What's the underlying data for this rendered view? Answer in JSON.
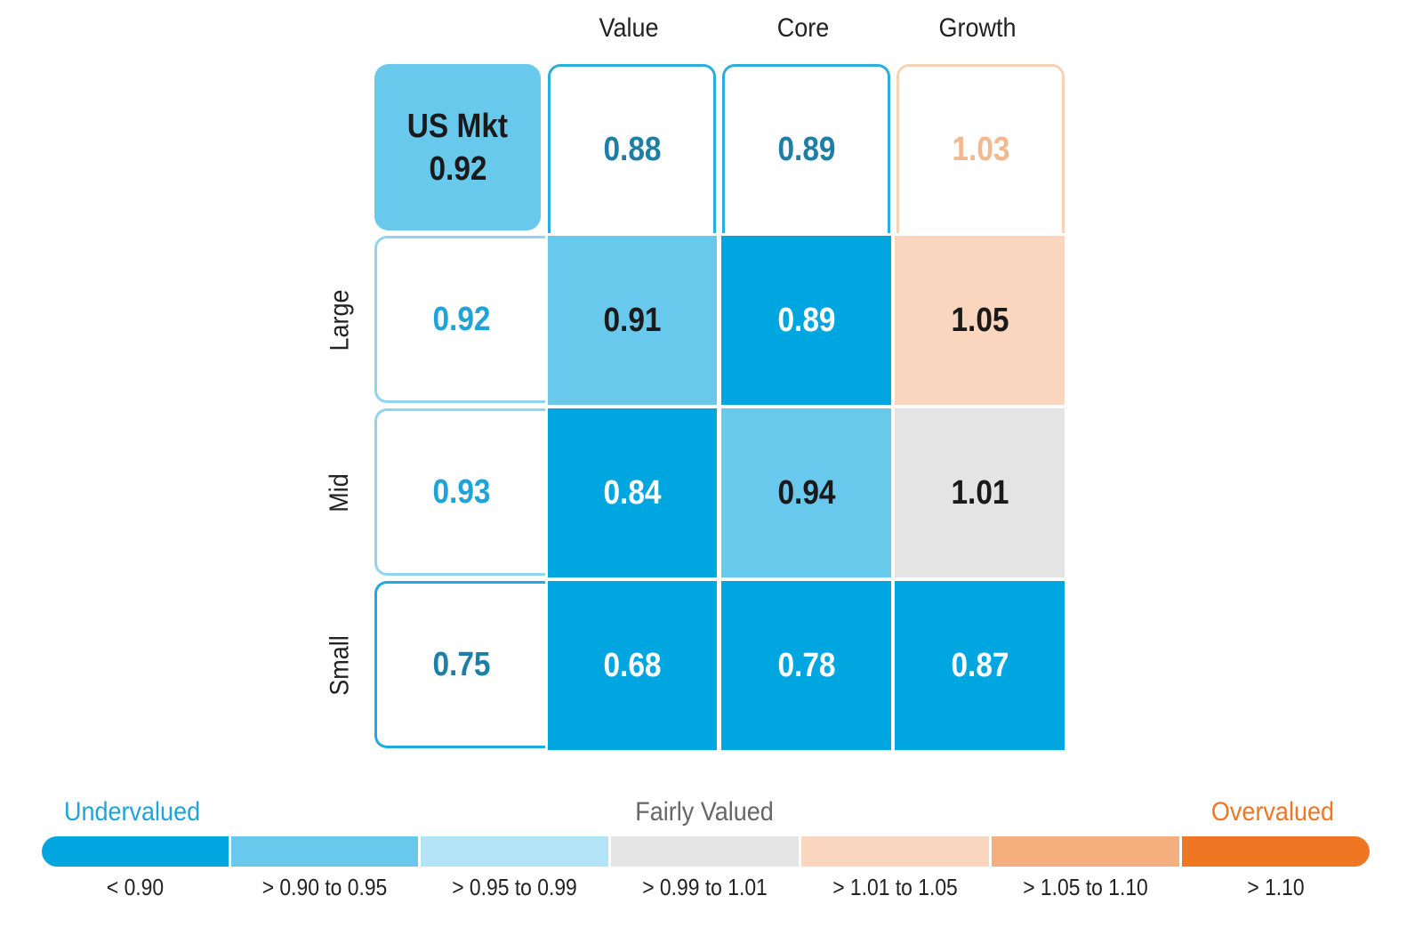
{
  "chart_data": {
    "type": "heatmap",
    "columns": [
      "Value",
      "Core",
      "Growth"
    ],
    "rows": [
      "Large",
      "Mid",
      "Small"
    ],
    "market": {
      "label": "US Mkt",
      "value": "0.92"
    },
    "column_totals": [
      "0.88",
      "0.89",
      "1.03"
    ],
    "row_totals": [
      "0.92",
      "0.93",
      "0.75"
    ],
    "values": [
      [
        "0.91",
        "0.89",
        "1.05"
      ],
      [
        "0.84",
        "0.94",
        "1.01"
      ],
      [
        "0.68",
        "0.78",
        "0.87"
      ]
    ]
  },
  "legend": {
    "left_label": "Undervalued",
    "center_label": "Fairly Valued",
    "right_label": "Overvalued",
    "bins": [
      {
        "label": "< 0.90",
        "color": "#00a6e0"
      },
      {
        "label": "> 0.90 to 0.95",
        "color": "#68c9ed"
      },
      {
        "label": "> 0.95 to 0.99",
        "color": "#b3e3f6"
      },
      {
        "label": "> 0.99 to 1.01",
        "color": "#e4e4e4"
      },
      {
        "label": "> 1.01 to 1.05",
        "color": "#f9d6bd"
      },
      {
        "label": "> 1.05 to 1.10",
        "color": "#f5ae7e"
      },
      {
        "label": "> 1.10",
        "color": "#ef7622"
      }
    ]
  },
  "colors": {
    "under_text": "#1fa4da",
    "over_text": "#ef7622",
    "total_text_blue": "#1d7fa6",
    "total_text_lightblue": "#1fa4da",
    "total_text_peach": "#f2b990",
    "dark_text": "#1a1a1a",
    "white_text": "#ffffff"
  }
}
